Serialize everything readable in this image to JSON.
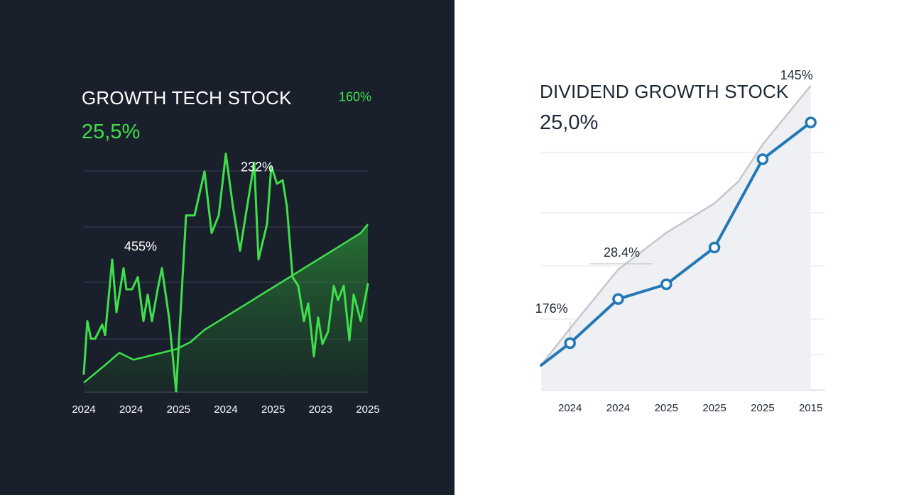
{
  "chart_data": [
    {
      "type": "line",
      "title": "GROWTH TECH STOCK",
      "subtitle": "25,5%",
      "categories": [
        "2024",
        "2024",
        "2025",
        "2024",
        "2025",
        "2023",
        "2025"
      ],
      "xlabel": "",
      "ylabel": "",
      "grid": true,
      "series": [
        {
          "name": "stock",
          "color": "#3ee04a",
          "x": [
            0,
            0.25,
            0.5,
            0.8,
            1.3,
            1.5,
            2.0,
            2.3,
            2.8,
            3.0,
            3.4,
            3.8,
            4.2,
            4.5,
            4.8,
            5.2,
            5.5,
            6.0,
            6.5,
            7.2,
            7.8,
            8.5,
            9.0,
            9.5,
            10.0,
            10.5,
            11.0,
            11.5,
            12.0,
            12.3,
            12.6,
            12.9,
            13.2,
            13.6,
            14.0,
            14.3,
            14.7,
            15.1,
            15.5,
            15.8,
            16.2,
            16.5,
            16.8,
            17.2,
            17.6,
            17.9,
            18.3,
            18.7,
            19.0,
            19.5,
            20.0
          ],
          "values": [
            10,
            40,
            30,
            30,
            38,
            32,
            75,
            45,
            70,
            58,
            58,
            65,
            40,
            55,
            40,
            58,
            70,
            42,
            0,
            100,
            100,
            125,
            90,
            100,
            135,
            105,
            80,
            105,
            130,
            75,
            85,
            95,
            128,
            118,
            120,
            105,
            65,
            60,
            40,
            50,
            20,
            42,
            27,
            34,
            60,
            52,
            60,
            29,
            55,
            40,
            61
          ],
          "point_labels": [
            {
              "x": 4.0,
              "y": 80,
              "text": "455%"
            },
            {
              "x": 12.2,
              "y": 125,
              "text": "232%"
            },
            {
              "x": 19.1,
              "y": 165,
              "text": "160%"
            }
          ]
        },
        {
          "name": "benchmark",
          "color": "#3ee04a",
          "fill": "area",
          "x": [
            0,
            1.5,
            2.5,
            3.5,
            4.5,
            5.5,
            6.5,
            7.5,
            8.5,
            9.5,
            10.5,
            11.5,
            12.5,
            13.5,
            14.5,
            15.5,
            16.5,
            17.5,
            18.5,
            19.5,
            20.0
          ],
          "values": [
            5,
            15,
            22,
            18,
            20,
            22,
            24,
            28,
            35,
            40,
            45,
            50,
            55,
            60,
            65,
            70,
            75,
            80,
            85,
            90,
            95
          ]
        }
      ],
      "ylim": [
        0,
        170
      ]
    },
    {
      "type": "line",
      "title": "DIVIDEND GROWTH STOCK",
      "subtitle": "25,0%",
      "categories": [
        "2024",
        "2024",
        "2025",
        "2025",
        "2025",
        "2015"
      ],
      "xlabel": "",
      "ylabel": "",
      "grid": true,
      "series": [
        {
          "name": "stock",
          "color": "#2378b5",
          "x": [
            -0.6,
            0,
            1,
            2,
            3,
            4,
            5
          ],
          "values": [
            0,
            30,
            90,
            110,
            160,
            280,
            330
          ],
          "markers": [
            1,
            2,
            3,
            4,
            5,
            6
          ],
          "point_labels": [
            {
              "x": 0,
              "y": 48,
              "text": "176%"
            },
            {
              "x": 1,
              "y": 118,
              "text": "28.4%"
            },
            {
              "x": 5,
              "y": 140,
              "text": "145%"
            }
          ]
        },
        {
          "name": "benchmark",
          "color": "#c4c7cd",
          "fill": "area",
          "x": [
            -0.6,
            0,
            1,
            2,
            3,
            3.5,
            4,
            5
          ],
          "values": [
            0,
            50,
            130,
            180,
            220,
            250,
            300,
            380
          ]
        }
      ],
      "ylim": [
        0,
        400
      ]
    }
  ]
}
